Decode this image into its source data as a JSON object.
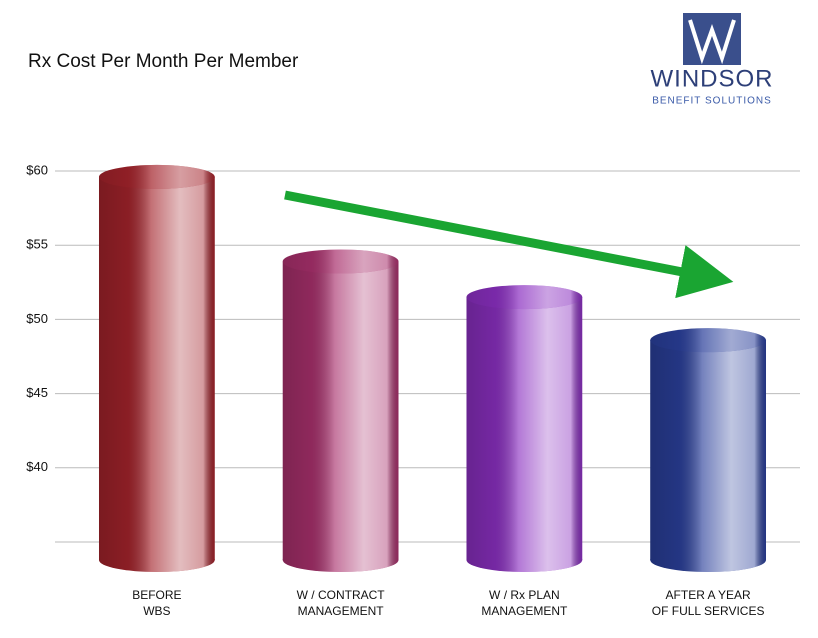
{
  "chart_data": {
    "type": "bar",
    "title": "Rx Cost Per Month Per Member",
    "brand": {
      "name": "WINDSOR",
      "tagline": "BENEFIT SOLUTIONS"
    },
    "categories": [
      "BEFORE\nWBS",
      "W / CONTRACT\nMANAGEMENT",
      "W / Rx PLAN\nMANAGEMENT",
      "AFTER A YEAR\nOF FULL SERVICES"
    ],
    "values": [
      59.6,
      53.9,
      51.5,
      48.6
    ],
    "colors": [
      "#a3232b",
      "#a8306c",
      "#8a2fc0",
      "#2a3f9a"
    ],
    "ylim": [
      35,
      60
    ],
    "yticks": [
      {
        "value": 40,
        "label": "$40"
      },
      {
        "value": 45,
        "label": "$45"
      },
      {
        "value": 50,
        "label": "$50"
      },
      {
        "value": 55,
        "label": "$55"
      },
      {
        "value": 60,
        "label": "$60"
      }
    ],
    "grid": true
  }
}
